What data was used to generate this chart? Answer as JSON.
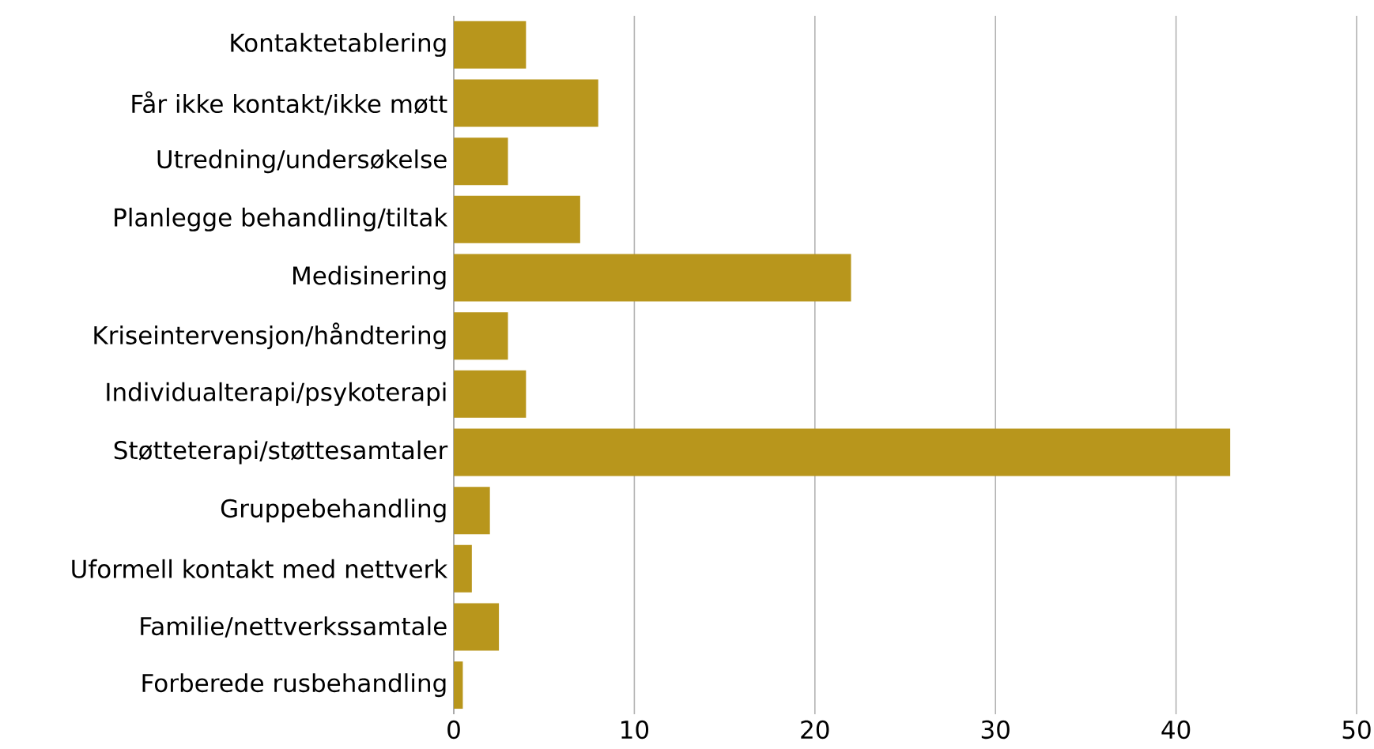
{
  "chart_data": {
    "type": "bar",
    "orientation": "horizontal",
    "categories": [
      "Kontaktetablering",
      "Får ikke kontakt/ikke møtt",
      "Utredning/undersøkelse",
      "Planlegge behandling/tiltak",
      "Medisinering",
      "Kriseintervensjon/håndtering",
      "Individualterapi/psykoterapi",
      "Støtteterapi/støttesamtaler",
      "Gruppebehandling",
      "Uformell kontakt med nettverk",
      "Familie/nettverkssamtale",
      "Forberede rusbehandling"
    ],
    "values": [
      4,
      8,
      3,
      7,
      22,
      3,
      4,
      43,
      2,
      1,
      2.5,
      0.5
    ],
    "color": "#b8961c",
    "xlim": [
      0,
      50
    ],
    "xticks": [
      0,
      10,
      20,
      30,
      40,
      50
    ],
    "grid": "x"
  }
}
